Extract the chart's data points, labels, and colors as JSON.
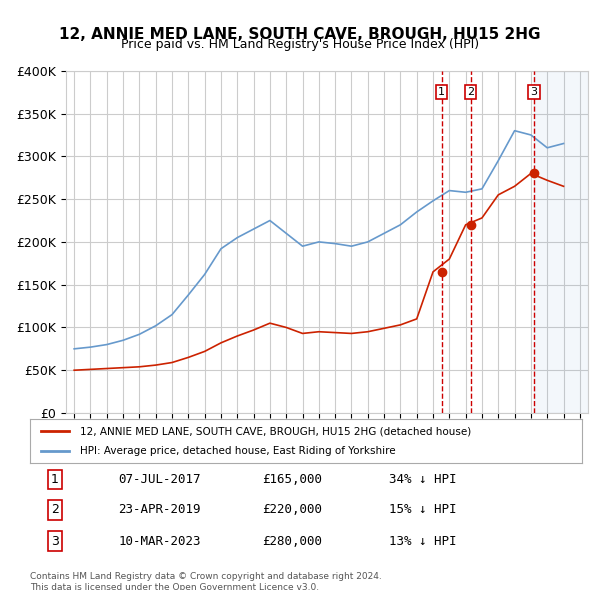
{
  "title": "12, ANNIE MED LANE, SOUTH CAVE, BROUGH, HU15 2HG",
  "subtitle": "Price paid vs. HM Land Registry's House Price Index (HPI)",
  "ylabel": "",
  "xlabel": "",
  "ylim": [
    0,
    400000
  ],
  "yticks": [
    0,
    50000,
    100000,
    150000,
    200000,
    250000,
    300000,
    350000,
    400000
  ],
  "ytick_labels": [
    "£0",
    "£50K",
    "£100K",
    "£150K",
    "£200K",
    "£250K",
    "£300K",
    "£350K",
    "£400K"
  ],
  "hpi_color": "#6699cc",
  "property_color": "#cc2200",
  "sale_line_color": "#cc0000",
  "sale_marker_color": "#cc2200",
  "background_color": "#ffffff",
  "grid_color": "#cccccc",
  "legend_label_property": "12, ANNIE MED LANE, SOUTH CAVE, BROUGH, HU15 2HG (detached house)",
  "legend_label_hpi": "HPI: Average price, detached house, East Riding of Yorkshire",
  "footer": "Contains HM Land Registry data © Crown copyright and database right 2024.\nThis data is licensed under the Open Government Licence v3.0.",
  "transactions": [
    {
      "num": 1,
      "date": "07-JUL-2017",
      "price": "£165,000",
      "change": "34% ↓ HPI",
      "year": 2017.52
    },
    {
      "num": 2,
      "date": "23-APR-2019",
      "price": "£220,000",
      "change": "15% ↓ HPI",
      "year": 2019.31
    },
    {
      "num": 3,
      "date": "10-MAR-2023",
      "price": "£280,000",
      "change": "13% ↓ HPI",
      "year": 2023.19
    }
  ],
  "sale_prices": [
    165000,
    220000,
    280000
  ],
  "hpi_years": [
    1995,
    1996,
    1997,
    1998,
    1999,
    2000,
    2001,
    2002,
    2003,
    2004,
    2005,
    2006,
    2007,
    2008,
    2009,
    2010,
    2011,
    2012,
    2013,
    2014,
    2015,
    2016,
    2017,
    2018,
    2019,
    2020,
    2021,
    2022,
    2023,
    2024,
    2025
  ],
  "hpi_values": [
    75000,
    77000,
    80000,
    85000,
    92000,
    102000,
    115000,
    138000,
    162000,
    192000,
    205000,
    215000,
    225000,
    210000,
    195000,
    200000,
    198000,
    195000,
    200000,
    210000,
    220000,
    235000,
    248000,
    260000,
    258000,
    262000,
    295000,
    330000,
    325000,
    310000,
    315000
  ],
  "prop_years": [
    1995,
    1996,
    1997,
    1998,
    1999,
    2000,
    2001,
    2002,
    2003,
    2004,
    2005,
    2006,
    2007,
    2008,
    2009,
    2010,
    2011,
    2012,
    2013,
    2014,
    2015,
    2016,
    2017,
    2018,
    2019,
    2020,
    2021,
    2022,
    2023,
    2024,
    2025
  ],
  "prop_values": [
    50000,
    51000,
    52000,
    53000,
    54000,
    56000,
    59000,
    65000,
    72000,
    82000,
    90000,
    97000,
    105000,
    100000,
    93000,
    95000,
    94000,
    93000,
    95000,
    99000,
    103000,
    110000,
    165000,
    180000,
    220000,
    228000,
    255000,
    265000,
    280000,
    272000,
    265000
  ],
  "xlim_start": 1994.5,
  "xlim_end": 2026.5,
  "shade_start": 2023.19
}
